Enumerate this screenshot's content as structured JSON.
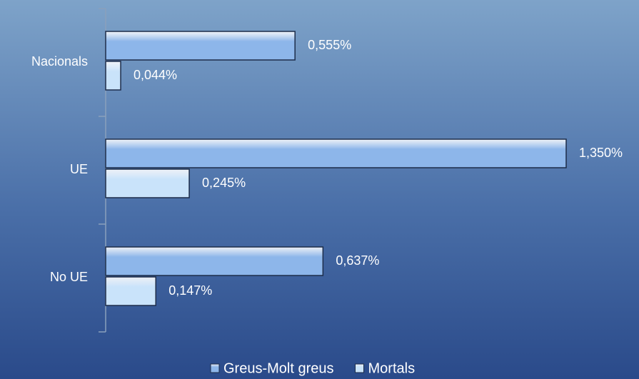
{
  "chart_data": {
    "type": "bar",
    "orientation": "horizontal",
    "categories": [
      "Nacionals",
      "UE",
      "No UE"
    ],
    "series": [
      {
        "name": "Greus-Molt greus",
        "color": "#8db6ea",
        "values": [
          0.555,
          1.35,
          0.637
        ],
        "value_labels": [
          "0,555%",
          "1,350%",
          "0,637%"
        ]
      },
      {
        "name": "Mortals",
        "color": "#c9e3fa",
        "values": [
          0.044,
          0.245,
          0.147
        ],
        "value_labels": [
          "0,044%",
          "0,245%",
          "0,147%"
        ]
      }
    ],
    "legend": "bottom"
  }
}
